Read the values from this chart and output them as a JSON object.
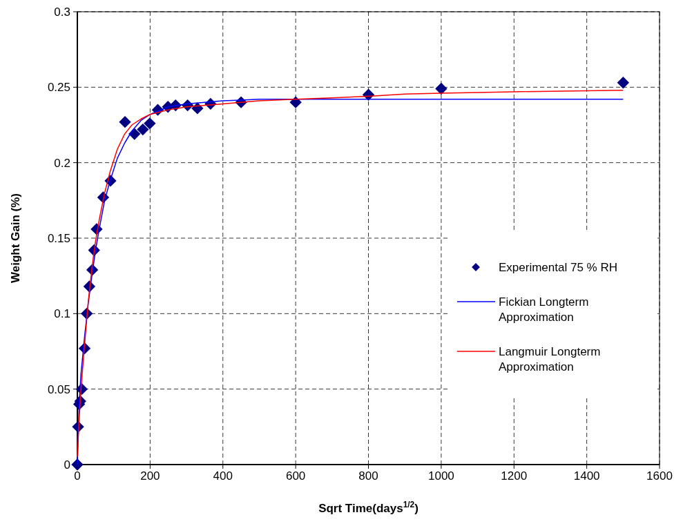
{
  "chart_data": {
    "type": "scatter",
    "xlabel": "Sqrt Time(days$^{1/2}$)",
    "ylabel": "Weight Gain (%)",
    "xlim": [
      0,
      1600
    ],
    "xticks": [
      0,
      200,
      400,
      600,
      800,
      1000,
      1200,
      1400,
      1600
    ],
    "ylim": [
      0,
      0.3
    ],
    "yticks": [
      0,
      0.05,
      0.1,
      0.15,
      0.2,
      0.25,
      0.3
    ],
    "grid": true,
    "legend": "right",
    "series": [
      {
        "name": "Experimental 75 % RH",
        "marker": "diamond",
        "color": "#000080",
        "x": [
          0,
          2,
          5,
          8,
          12,
          20,
          26,
          33,
          41,
          46,
          53,
          71,
          91,
          131,
          157,
          180,
          199,
          221,
          249,
          270,
          303,
          330,
          366,
          450,
          600,
          800,
          1000,
          1500
        ],
        "values": [
          0,
          0.025,
          0.04,
          0.042,
          0.05,
          0.077,
          0.1,
          0.118,
          0.129,
          0.142,
          0.156,
          0.177,
          0.188,
          0.227,
          0.219,
          0.222,
          0.226,
          0.235,
          0.237,
          0.238,
          0.238,
          0.236,
          0.239,
          0.24,
          0.24,
          0.245,
          0.249,
          0.253
        ]
      },
      {
        "name": "Fickian Longterm Approximation",
        "type": "line",
        "marker": "none",
        "color": "#0000ff",
        "x": [
          0,
          5,
          10,
          20,
          30,
          40,
          50,
          60,
          75,
          90,
          110,
          130,
          150,
          175,
          200,
          250,
          300,
          350,
          400,
          450,
          500,
          1500
        ],
        "values": [
          0,
          0.04,
          0.06,
          0.085,
          0.107,
          0.125,
          0.142,
          0.156,
          0.175,
          0.188,
          0.203,
          0.213,
          0.221,
          0.228,
          0.232,
          0.237,
          0.239,
          0.24,
          0.241,
          0.2415,
          0.242,
          0.242
        ]
      },
      {
        "name": "Langmuir Longterm Approximation",
        "type": "line",
        "marker": "none",
        "color": "#ff0000",
        "x": [
          0,
          5,
          10,
          20,
          30,
          40,
          50,
          60,
          75,
          90,
          110,
          130,
          150,
          175,
          200,
          250,
          300,
          400,
          500,
          600,
          700,
          800,
          900,
          1000,
          1200,
          1500
        ],
        "values": [
          0.005,
          0.03,
          0.05,
          0.08,
          0.108,
          0.13,
          0.148,
          0.162,
          0.18,
          0.194,
          0.209,
          0.219,
          0.225,
          0.229,
          0.232,
          0.235,
          0.237,
          0.239,
          0.241,
          0.242,
          0.243,
          0.244,
          0.2455,
          0.246,
          0.247,
          0.248
        ]
      }
    ]
  }
}
